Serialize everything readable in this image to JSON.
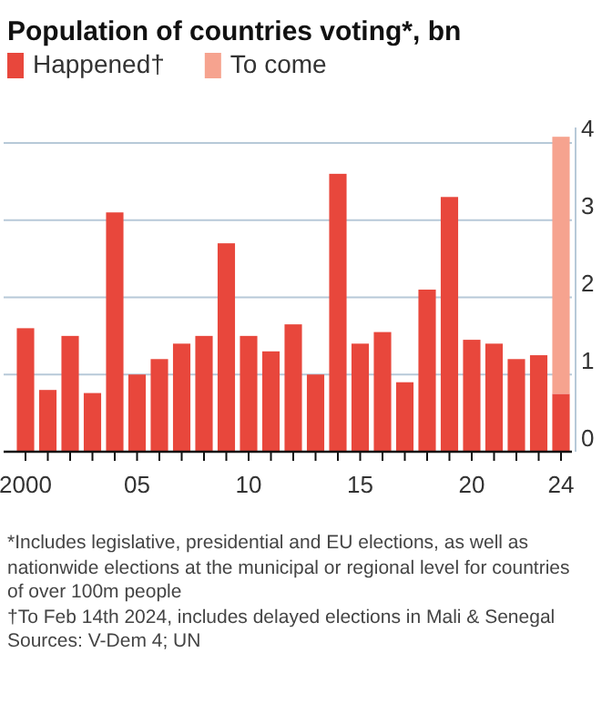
{
  "chart_data": {
    "type": "bar",
    "title": "Population of countries voting*, bn",
    "categories": [
      "2000",
      null,
      null,
      null,
      null,
      "05",
      null,
      null,
      null,
      null,
      "10",
      null,
      null,
      null,
      null,
      "15",
      null,
      null,
      null,
      null,
      "20",
      null,
      null,
      null,
      "24"
    ],
    "series": [
      {
        "name": "Happened†",
        "color": "#e8473c",
        "values": [
          1.6,
          0.8,
          1.5,
          0.76,
          3.1,
          1.0,
          1.2,
          1.4,
          1.5,
          2.7,
          1.5,
          1.3,
          1.65,
          1.0,
          3.6,
          1.4,
          1.55,
          0.9,
          2.1,
          3.3,
          1.45,
          1.4,
          1.2,
          1.25,
          0.75
        ]
      },
      {
        "name": "To come",
        "color": "#f6a38f",
        "values": [
          null,
          null,
          null,
          null,
          null,
          null,
          null,
          null,
          null,
          null,
          null,
          null,
          null,
          null,
          null,
          null,
          null,
          null,
          null,
          null,
          null,
          null,
          null,
          null,
          3.33
        ]
      }
    ],
    "stacked": true,
    "ylim": [
      0,
      4.2
    ],
    "yticks": [
      0,
      1,
      2,
      3,
      4
    ],
    "grid": "y",
    "legend": "top left",
    "annotations": [
      "*Includes legislative, presidential and EU elections, as well as nationwide elections at the municipal or regional level for countries of over 100m people",
      "†To Feb 14th 2024, includes delayed elections in Mali & Senegal",
      "Sources: V-Dem 4; UN"
    ]
  }
}
